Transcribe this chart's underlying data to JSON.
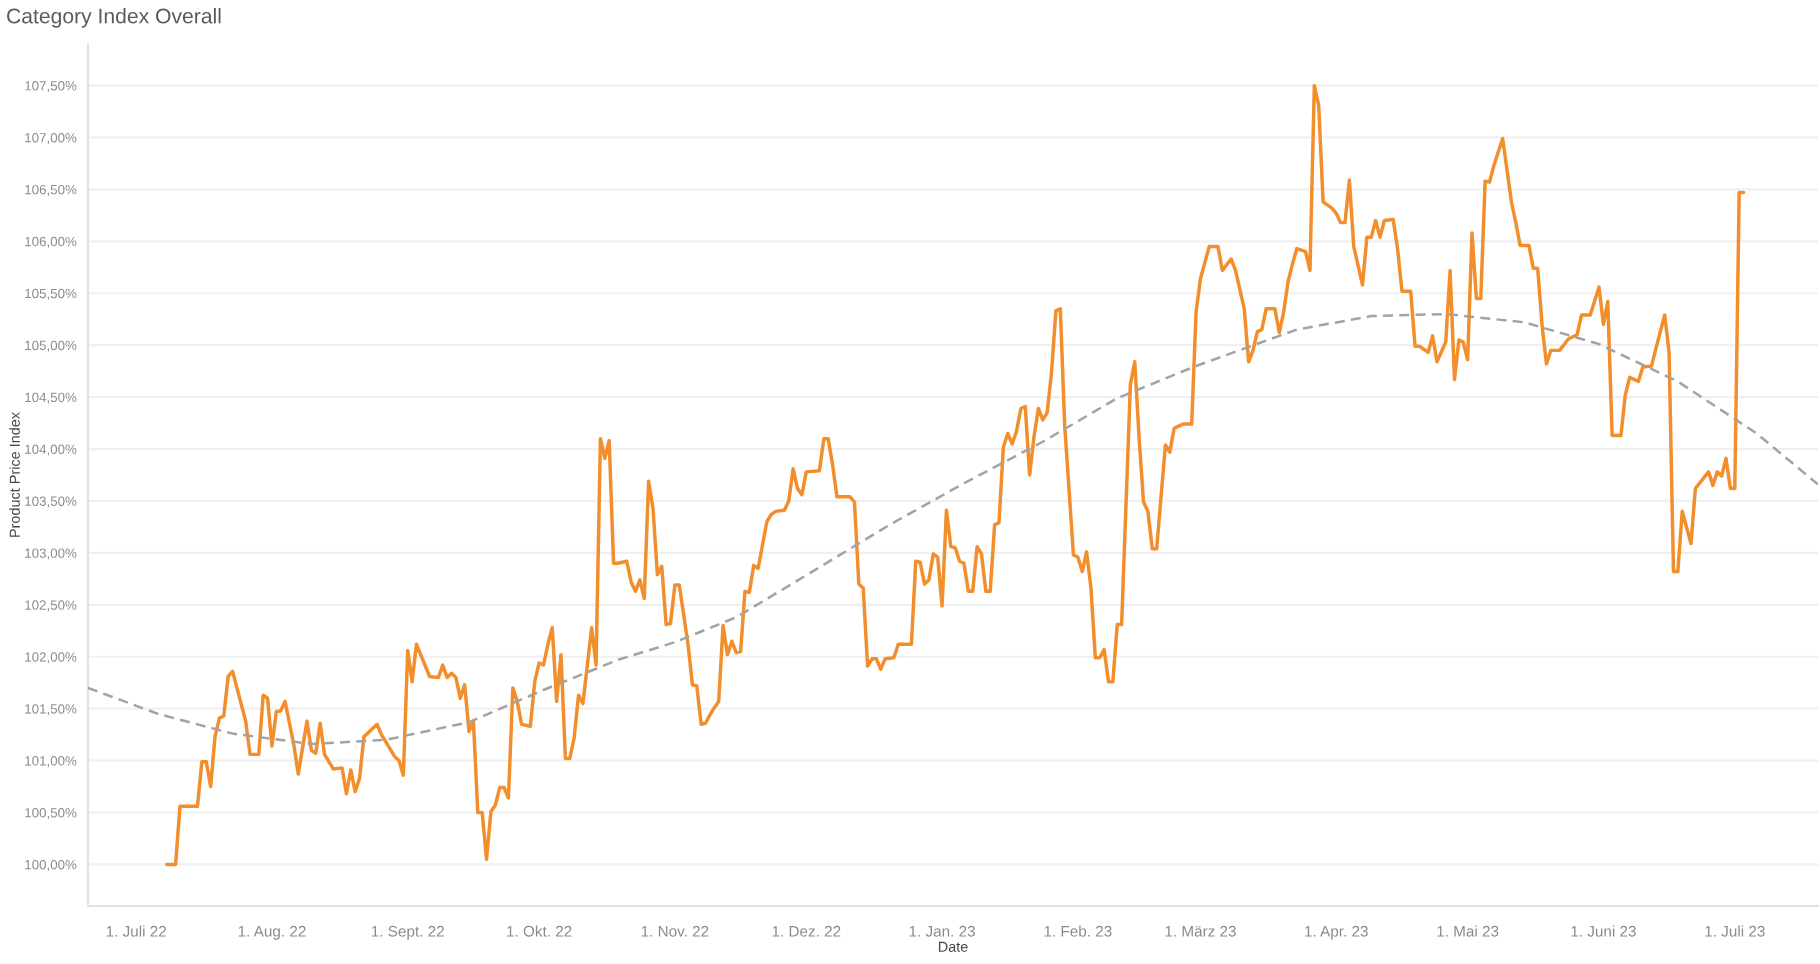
{
  "chart_data": {
    "type": "line",
    "title": "Category Index Overall",
    "xlabel": "Date",
    "ylabel": "Product Price Index",
    "xlim": [
      "2022-06-20",
      "2023-07-20"
    ],
    "xticks": [
      {
        "value": "2022-07-01",
        "label": "1. Juli 22"
      },
      {
        "value": "2022-08-01",
        "label": "1. Aug. 22"
      },
      {
        "value": "2022-09-01",
        "label": "1. Sept. 22"
      },
      {
        "value": "2022-10-01",
        "label": "1. Okt. 22"
      },
      {
        "value": "2022-11-01",
        "label": "1. Nov. 22"
      },
      {
        "value": "2022-12-01",
        "label": "1. Dez. 22"
      },
      {
        "value": "2023-01-01",
        "label": "1. Jan. 23"
      },
      {
        "value": "2023-02-01",
        "label": "1. Feb. 23"
      },
      {
        "value": "2023-03-01",
        "label": "1. März 23"
      },
      {
        "value": "2023-04-01",
        "label": "1. Apr. 23"
      },
      {
        "value": "2023-05-01",
        "label": "1. Mai 23"
      },
      {
        "value": "2023-06-01",
        "label": "1. Juni 23"
      },
      {
        "value": "2023-07-01",
        "label": "1. Juli 23"
      }
    ],
    "ylim": [
      99.6,
      107.9
    ],
    "yticks": [
      {
        "value": 100,
        "label": "100,00%"
      },
      {
        "value": 100.5,
        "label": "100,50%"
      },
      {
        "value": 101,
        "label": "101,00%"
      },
      {
        "value": 101.5,
        "label": "101,50%"
      },
      {
        "value": 102,
        "label": "102,00%"
      },
      {
        "value": 102.5,
        "label": "102,50%"
      },
      {
        "value": 103,
        "label": "103,00%"
      },
      {
        "value": 103.5,
        "label": "103,50%"
      },
      {
        "value": 104,
        "label": "104,00%"
      },
      {
        "value": 104.5,
        "label": "104,50%"
      },
      {
        "value": 105,
        "label": "105,00%"
      },
      {
        "value": 105.5,
        "label": "105,50%"
      },
      {
        "value": 106,
        "label": "106,00%"
      },
      {
        "value": 106.5,
        "label": "106,50%"
      },
      {
        "value": 107,
        "label": "107,00%"
      },
      {
        "value": 107.5,
        "label": "107,50%"
      }
    ],
    "grid": "y",
    "series": [
      {
        "color": "#f28e2b",
        "line_style": "solid",
        "x": [
          "2022-07-08",
          "2022-07-10",
          "2022-07-11",
          "2022-07-15",
          "2022-07-16",
          "2022-07-17",
          "2022-07-18",
          "2022-07-19",
          "2022-07-20",
          "2022-07-21",
          "2022-07-22",
          "2022-07-23",
          "2022-07-26",
          "2022-07-27",
          "2022-07-29",
          "2022-07-30",
          "2022-07-31",
          "2022-08-01",
          "2022-08-02",
          "2022-08-03",
          "2022-08-04",
          "2022-08-06",
          "2022-08-07",
          "2022-08-09",
          "2022-08-10",
          "2022-08-11",
          "2022-08-12",
          "2022-08-13",
          "2022-08-15",
          "2022-08-17",
          "2022-08-18",
          "2022-08-19",
          "2022-08-20",
          "2022-08-21",
          "2022-08-22",
          "2022-08-25",
          "2022-08-26",
          "2022-08-29",
          "2022-08-30",
          "2022-08-31",
          "2022-09-01",
          "2022-09-02",
          "2022-09-03",
          "2022-09-06",
          "2022-09-08",
          "2022-09-09",
          "2022-09-10",
          "2022-09-11",
          "2022-09-12",
          "2022-09-13",
          "2022-09-14",
          "2022-09-15",
          "2022-09-16",
          "2022-09-17",
          "2022-09-18",
          "2022-09-19",
          "2022-09-20",
          "2022-09-21",
          "2022-09-22",
          "2022-09-23",
          "2022-09-24",
          "2022-09-25",
          "2022-09-26",
          "2022-09-27",
          "2022-09-29",
          "2022-09-30",
          "2022-10-01",
          "2022-10-02",
          "2022-10-03",
          "2022-10-04",
          "2022-10-05",
          "2022-10-06",
          "2022-10-07",
          "2022-10-08",
          "2022-10-09",
          "2022-10-10",
          "2022-10-11",
          "2022-10-13",
          "2022-10-14",
          "2022-10-15",
          "2022-10-16",
          "2022-10-17",
          "2022-10-18",
          "2022-10-19",
          "2022-10-21",
          "2022-10-22",
          "2022-10-23",
          "2022-10-24",
          "2022-10-25",
          "2022-10-26",
          "2022-10-27",
          "2022-10-28",
          "2022-10-29",
          "2022-10-30",
          "2022-10-31",
          "2022-11-01",
          "2022-11-02",
          "2022-11-04",
          "2022-11-05",
          "2022-11-06",
          "2022-11-07",
          "2022-11-08",
          "2022-11-09",
          "2022-11-10",
          "2022-11-11",
          "2022-11-12",
          "2022-11-13",
          "2022-11-14",
          "2022-11-15",
          "2022-11-16",
          "2022-11-17",
          "2022-11-18",
          "2022-11-19",
          "2022-11-20",
          "2022-11-22",
          "2022-11-23",
          "2022-11-24",
          "2022-11-26",
          "2022-11-27",
          "2022-11-28",
          "2022-11-29",
          "2022-11-30",
          "2022-12-01",
          "2022-12-04",
          "2022-12-05",
          "2022-12-06",
          "2022-12-07",
          "2022-12-08",
          "2022-12-11",
          "2022-12-12",
          "2022-12-13",
          "2022-12-14",
          "2022-12-15",
          "2022-12-16",
          "2022-12-17",
          "2022-12-18",
          "2022-12-19",
          "2022-12-21",
          "2022-12-22",
          "2022-12-25",
          "2022-12-26",
          "2022-12-27",
          "2022-12-28",
          "2022-12-29",
          "2022-12-30",
          "2022-12-31",
          "2023-01-01",
          "2023-01-02",
          "2023-01-03",
          "2023-01-04",
          "2023-01-05",
          "2023-01-06",
          "2023-01-07",
          "2023-01-08",
          "2023-01-09",
          "2023-01-10",
          "2023-01-11",
          "2023-01-12",
          "2023-01-13",
          "2023-01-14",
          "2023-01-15",
          "2023-01-16",
          "2023-01-17",
          "2023-01-18",
          "2023-01-19",
          "2023-01-20",
          "2023-01-21",
          "2023-01-22",
          "2023-01-23",
          "2023-01-24",
          "2023-01-25",
          "2023-01-26",
          "2023-01-27",
          "2023-01-28",
          "2023-01-29",
          "2023-01-31",
          "2023-02-01",
          "2023-02-02",
          "2023-02-03",
          "2023-02-04",
          "2023-02-05",
          "2023-02-06",
          "2023-02-07",
          "2023-02-08",
          "2023-02-09",
          "2023-02-10",
          "2023-02-11",
          "2023-02-13",
          "2023-02-14",
          "2023-02-15",
          "2023-02-16",
          "2023-02-17",
          "2023-02-18",
          "2023-02-19",
          "2023-02-21",
          "2023-02-22",
          "2023-02-23",
          "2023-02-24",
          "2023-02-25",
          "2023-02-27",
          "2023-02-28",
          "2023-03-01",
          "2023-03-03",
          "2023-03-05",
          "2023-03-06",
          "2023-03-08",
          "2023-03-09",
          "2023-03-11",
          "2023-03-12",
          "2023-03-13",
          "2023-03-14",
          "2023-03-15",
          "2023-03-16",
          "2023-03-18",
          "2023-03-19",
          "2023-03-20",
          "2023-03-21",
          "2023-03-22",
          "2023-03-23",
          "2023-03-25",
          "2023-03-26",
          "2023-03-27",
          "2023-03-28",
          "2023-03-29",
          "2023-03-31",
          "2023-04-01",
          "2023-04-02",
          "2023-04-03",
          "2023-04-04",
          "2023-04-05",
          "2023-04-07",
          "2023-04-08",
          "2023-04-09",
          "2023-04-10",
          "2023-04-11",
          "2023-04-12",
          "2023-04-14",
          "2023-04-15",
          "2023-04-16",
          "2023-04-18",
          "2023-04-19",
          "2023-04-20",
          "2023-04-22",
          "2023-04-23",
          "2023-04-24",
          "2023-04-26",
          "2023-04-27",
          "2023-04-28",
          "2023-04-29",
          "2023-04-30",
          "2023-05-01",
          "2023-05-02",
          "2023-05-03",
          "2023-05-04",
          "2023-05-05",
          "2023-05-06",
          "2023-05-07",
          "2023-05-09",
          "2023-05-11",
          "2023-05-12",
          "2023-05-13",
          "2023-05-15",
          "2023-05-16",
          "2023-05-17",
          "2023-05-18",
          "2023-05-19",
          "2023-05-20",
          "2023-05-22",
          "2023-05-24",
          "2023-05-26",
          "2023-05-27",
          "2023-05-29",
          "2023-05-31",
          "2023-06-01",
          "2023-06-02",
          "2023-06-03",
          "2023-06-05",
          "2023-06-06",
          "2023-06-07",
          "2023-06-09",
          "2023-06-10",
          "2023-06-12",
          "2023-06-13",
          "2023-06-15",
          "2023-06-16",
          "2023-06-17",
          "2023-06-18",
          "2023-06-19",
          "2023-06-21",
          "2023-06-22",
          "2023-06-25",
          "2023-06-26",
          "2023-06-27",
          "2023-06-28",
          "2023-06-29",
          "2023-06-30",
          "2023-07-01",
          "2023-07-02",
          "2023-07-03"
        ],
        "values": [
          100.0,
          100.0,
          100.56,
          100.56,
          100.99,
          100.99,
          100.75,
          101.23,
          101.41,
          101.43,
          101.81,
          101.86,
          101.38,
          101.06,
          101.06,
          101.63,
          101.6,
          101.14,
          101.47,
          101.48,
          101.57,
          101.15,
          100.87,
          101.38,
          101.1,
          101.07,
          101.36,
          101.06,
          100.92,
          100.93,
          100.68,
          100.91,
          100.7,
          100.83,
          101.23,
          101.35,
          101.25,
          101.04,
          101.0,
          100.86,
          102.06,
          101.76,
          102.12,
          101.81,
          101.8,
          101.92,
          101.8,
          101.84,
          101.8,
          101.6,
          101.73,
          101.28,
          101.38,
          100.5,
          100.5,
          100.05,
          100.51,
          100.57,
          100.74,
          100.74,
          100.64,
          101.7,
          101.57,
          101.35,
          101.33,
          101.76,
          101.94,
          101.92,
          102.12,
          102.28,
          101.57,
          102.02,
          101.02,
          101.02,
          101.22,
          101.63,
          101.55,
          102.28,
          101.92,
          104.1,
          103.91,
          104.08,
          102.9,
          102.9,
          102.92,
          102.72,
          102.63,
          102.74,
          102.56,
          103.69,
          103.43,
          102.79,
          102.87,
          102.31,
          102.32,
          102.69,
          102.69,
          102.12,
          101.73,
          101.72,
          101.35,
          101.36,
          101.44,
          101.51,
          101.57,
          102.3,
          102.02,
          102.15,
          102.04,
          102.05,
          102.63,
          102.62,
          102.88,
          102.85,
          103.3,
          103.37,
          103.4,
          103.41,
          103.5,
          103.81,
          103.62,
          103.56,
          103.78,
          103.79,
          104.1,
          104.1,
          103.85,
          103.54,
          103.54,
          103.49,
          102.7,
          102.66,
          101.91,
          101.98,
          101.98,
          101.88,
          101.98,
          101.99,
          102.12,
          102.12,
          102.92,
          102.91,
          102.7,
          102.74,
          102.99,
          102.96,
          102.49,
          103.41,
          103.06,
          103.05,
          102.92,
          102.9,
          102.63,
          102.63,
          103.06,
          102.99,
          102.63,
          102.63,
          103.27,
          103.29,
          104.02,
          104.15,
          104.05,
          104.17,
          104.39,
          104.41,
          103.75,
          104.12,
          104.39,
          104.28,
          104.35,
          104.74,
          105.33,
          105.35,
          104.23,
          102.98,
          102.96,
          102.82,
          103.01,
          102.66,
          101.99,
          101.99,
          102.07,
          101.76,
          101.76,
          102.31,
          102.31,
          104.62,
          104.84,
          104.1,
          103.49,
          103.4,
          103.04,
          103.04,
          104.04,
          103.97,
          104.2,
          104.22,
          104.24,
          104.24,
          105.32,
          105.64,
          105.95,
          105.95,
          105.72,
          105.83,
          105.72,
          105.35,
          104.84,
          104.95,
          105.13,
          105.15,
          105.35,
          105.35,
          105.12,
          105.32,
          105.61,
          105.78,
          105.93,
          105.9,
          105.72,
          107.5,
          107.31,
          106.38,
          106.32,
          106.27,
          106.18,
          106.18,
          106.59,
          105.95,
          105.58,
          106.04,
          106.04,
          106.2,
          106.04,
          106.2,
          106.21,
          105.93,
          105.52,
          105.52,
          104.99,
          104.99,
          104.93,
          105.09,
          104.84,
          105.03,
          105.72,
          104.67,
          105.05,
          105.03,
          104.86,
          106.08,
          105.45,
          105.45,
          106.58,
          106.57,
          106.73,
          106.99,
          106.38,
          106.18,
          105.96,
          105.96,
          105.74,
          105.74,
          105.19,
          104.82,
          104.95,
          104.95,
          105.06,
          105.1,
          105.29,
          105.29,
          105.56,
          105.2,
          105.42,
          104.13,
          104.13,
          104.52,
          104.69,
          104.65,
          104.79,
          104.8,
          104.97,
          105.29,
          104.93,
          102.82,
          102.82,
          103.4,
          103.09,
          103.62,
          103.78,
          103.65,
          103.78,
          103.74,
          103.91,
          103.62,
          103.62,
          106.47,
          106.47
        ]
      },
      {
        "type": "line",
        "color": "#a3a3a3",
        "line_style": "dashed",
        "x": [
          "2022-06-20",
          "2022-07-06",
          "2022-07-23",
          "2022-08-10",
          "2022-08-27",
          "2022-09-15",
          "2022-10-02",
          "2022-10-19",
          "2022-11-01",
          "2022-11-15",
          "2022-12-02",
          "2022-12-20",
          "2023-01-06",
          "2023-01-24",
          "2023-02-10",
          "2023-02-28",
          "2023-03-23",
          "2023-04-09",
          "2023-04-26",
          "2023-05-14",
          "2023-05-31",
          "2023-06-18",
          "2023-07-06",
          "2023-07-20"
        ],
        "values": [
          101.7,
          101.45,
          101.26,
          101.16,
          101.2,
          101.37,
          101.68,
          101.97,
          102.14,
          102.38,
          102.81,
          103.27,
          103.67,
          104.07,
          104.49,
          104.8,
          105.15,
          105.28,
          105.3,
          105.22,
          105.01,
          104.65,
          104.15,
          103.66
        ]
      }
    ]
  }
}
